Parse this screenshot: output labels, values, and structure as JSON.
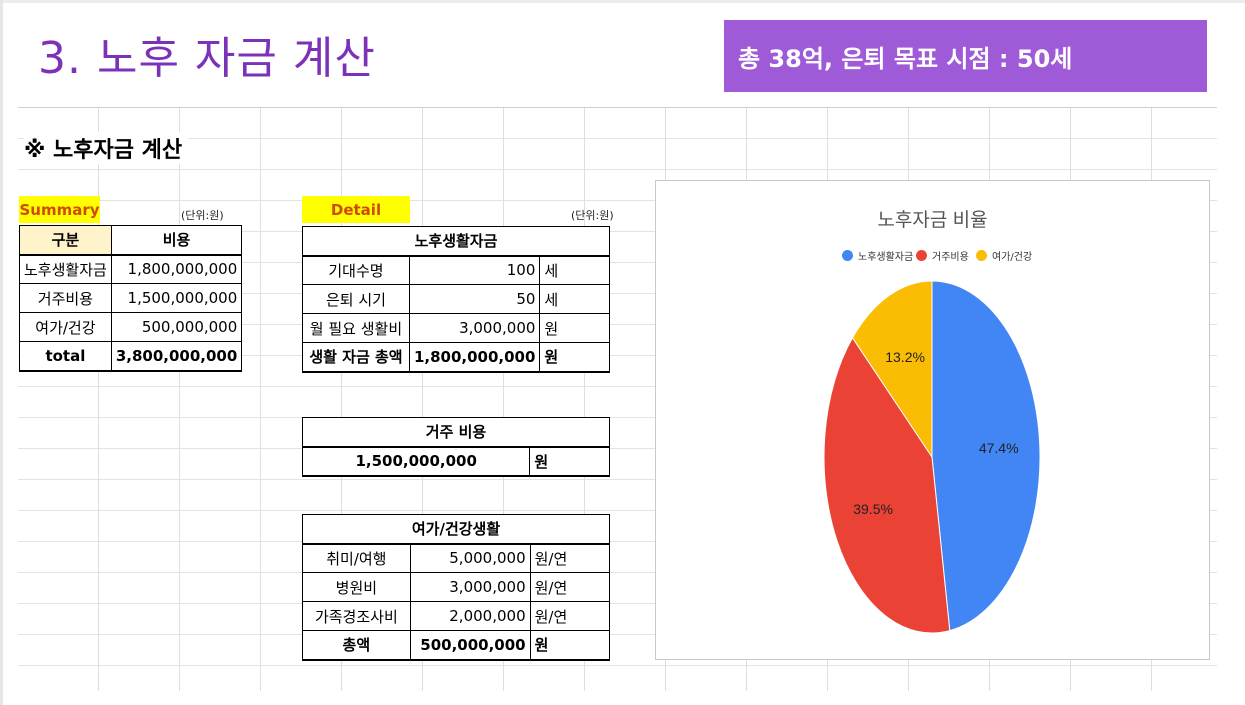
{
  "slide": {
    "title": "3. 노후 자금 계산",
    "banner": "총 38억, 은퇴 목표 시점  : 50세"
  },
  "sheet": {
    "heading": "※ 노후자금 계산",
    "summary": {
      "label": "Summary",
      "unit": "(단위:원)",
      "headers": [
        "구분",
        "비용"
      ],
      "rows": [
        {
          "name": "노후생활자금",
          "value": "1,800,000,000"
        },
        {
          "name": "거주비용",
          "value": "1,500,000,000"
        },
        {
          "name": "여가/건강",
          "value": "500,000,000"
        },
        {
          "name": "total",
          "value": "3,800,000,000"
        }
      ]
    },
    "detail": {
      "label": "Detail",
      "unit": "(단위:원)",
      "living": {
        "title": "노후생활자금",
        "rows": [
          {
            "name": "기대수명",
            "value": "100",
            "unit": "세"
          },
          {
            "name": "은퇴 시기",
            "value": "50",
            "unit": "세"
          },
          {
            "name": "월 필요 생활비",
            "value": "3,000,000",
            "unit": "원"
          },
          {
            "name": "생활 자금 총액",
            "value": "1,800,000,000",
            "unit": "원"
          }
        ]
      },
      "housing": {
        "title": "거주 비용",
        "value": "1,500,000,000",
        "unit": "원"
      },
      "leisure": {
        "title": "여가/건강생활",
        "rows": [
          {
            "name": "취미/여행",
            "value": "5,000,000",
            "unit": "원/연"
          },
          {
            "name": "병원비",
            "value": "3,000,000",
            "unit": "원/연"
          },
          {
            "name": "가족경조사비",
            "value": "2,000,000",
            "unit": "원/연"
          },
          {
            "name": "총액",
            "value": "500,000,000",
            "unit": "원"
          }
        ]
      }
    }
  },
  "chart_data": {
    "type": "pie",
    "title": "노후자금 비율",
    "legend_position": "top",
    "series": [
      {
        "name": "노후생활자금",
        "value": 1800000000,
        "percent_label": "47.4%",
        "color": "#4285f4"
      },
      {
        "name": "거주비용",
        "value": 1500000000,
        "percent_label": "39.5%",
        "color": "#ea4335"
      },
      {
        "name": "여가/건강",
        "value": 500000000,
        "percent_label": "13.2%",
        "color": "#fbbc04"
      }
    ]
  }
}
